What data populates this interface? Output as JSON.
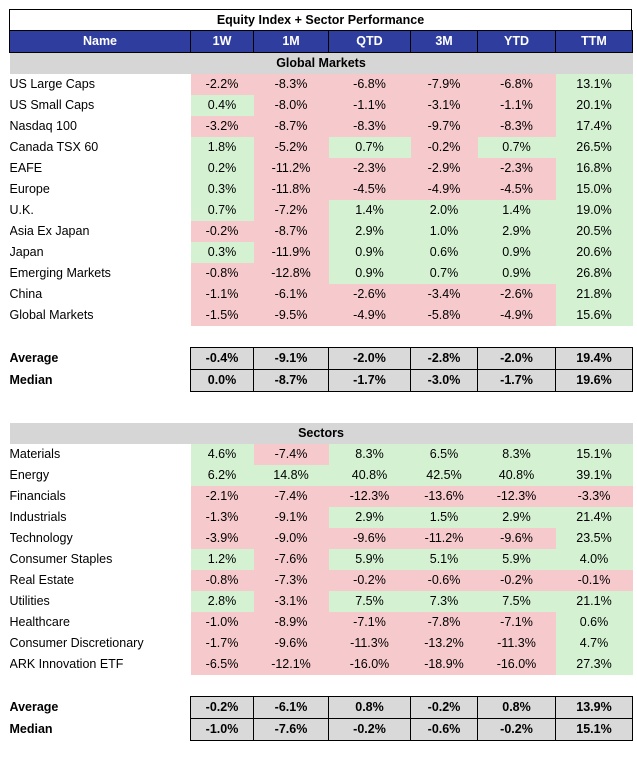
{
  "title": "Equity Index + Sector Performance",
  "columns": [
    "Name",
    "1W",
    "1M",
    "QTD",
    "3M",
    "YTD",
    "TTM"
  ],
  "global": {
    "header": "Global Markets",
    "rows": [
      {
        "name": "US Large Caps",
        "vals": [
          "-2.2%",
          "-8.3%",
          "-6.8%",
          "-7.9%",
          "-6.8%",
          "13.1%"
        ]
      },
      {
        "name": "US Small Caps",
        "vals": [
          "0.4%",
          "-8.0%",
          "-1.1%",
          "-3.1%",
          "-1.1%",
          "20.1%"
        ]
      },
      {
        "name": "Nasdaq 100",
        "vals": [
          "-3.2%",
          "-8.7%",
          "-8.3%",
          "-9.7%",
          "-8.3%",
          "17.4%"
        ]
      },
      {
        "name": "Canada TSX 60",
        "vals": [
          "1.8%",
          "-5.2%",
          "0.7%",
          "-0.2%",
          "0.7%",
          "26.5%"
        ]
      },
      {
        "name": "EAFE",
        "vals": [
          "0.2%",
          "-11.2%",
          "-2.3%",
          "-2.9%",
          "-2.3%",
          "16.8%"
        ]
      },
      {
        "name": "Europe",
        "vals": [
          "0.3%",
          "-11.8%",
          "-4.5%",
          "-4.9%",
          "-4.5%",
          "15.0%"
        ]
      },
      {
        "name": "U.K.",
        "vals": [
          "0.7%",
          "-7.2%",
          "1.4%",
          "2.0%",
          "1.4%",
          "19.0%"
        ]
      },
      {
        "name": "Asia Ex Japan",
        "vals": [
          "-0.2%",
          "-8.7%",
          "2.9%",
          "1.0%",
          "2.9%",
          "20.5%"
        ]
      },
      {
        "name": "Japan",
        "vals": [
          "0.3%",
          "-11.9%",
          "0.9%",
          "0.6%",
          "0.9%",
          "20.6%"
        ]
      },
      {
        "name": "Emerging Markets",
        "vals": [
          "-0.8%",
          "-12.8%",
          "0.9%",
          "0.7%",
          "0.9%",
          "26.8%"
        ]
      },
      {
        "name": "China",
        "vals": [
          "-1.1%",
          "-6.1%",
          "-2.6%",
          "-3.4%",
          "-2.6%",
          "21.8%"
        ]
      },
      {
        "name": "Global Markets",
        "vals": [
          "-1.5%",
          "-9.5%",
          "-4.9%",
          "-5.8%",
          "-4.9%",
          "15.6%"
        ]
      }
    ],
    "average": {
      "label": "Average",
      "vals": [
        "-0.4%",
        "-9.1%",
        "-2.0%",
        "-2.8%",
        "-2.0%",
        "19.4%"
      ]
    },
    "median": {
      "label": "Median",
      "vals": [
        "0.0%",
        "-8.7%",
        "-1.7%",
        "-3.0%",
        "-1.7%",
        "19.6%"
      ]
    }
  },
  "sectors": {
    "header": "Sectors",
    "rows": [
      {
        "name": "Materials",
        "vals": [
          "4.6%",
          "-7.4%",
          "8.3%",
          "6.5%",
          "8.3%",
          "15.1%"
        ]
      },
      {
        "name": "Energy",
        "vals": [
          "6.2%",
          "14.8%",
          "40.8%",
          "42.5%",
          "40.8%",
          "39.1%"
        ]
      },
      {
        "name": "Financials",
        "vals": [
          "-2.1%",
          "-7.4%",
          "-12.3%",
          "-13.6%",
          "-12.3%",
          "-3.3%"
        ]
      },
      {
        "name": "Industrials",
        "vals": [
          "-1.3%",
          "-9.1%",
          "2.9%",
          "1.5%",
          "2.9%",
          "21.4%"
        ]
      },
      {
        "name": "Technology",
        "vals": [
          "-3.9%",
          "-9.0%",
          "-9.6%",
          "-11.2%",
          "-9.6%",
          "23.5%"
        ]
      },
      {
        "name": "Consumer Staples",
        "vals": [
          "1.2%",
          "-7.6%",
          "5.9%",
          "5.1%",
          "5.9%",
          "4.0%"
        ]
      },
      {
        "name": "Real Estate",
        "vals": [
          "-0.8%",
          "-7.3%",
          "-0.2%",
          "-0.6%",
          "-0.2%",
          "-0.1%"
        ]
      },
      {
        "name": "Utilities",
        "vals": [
          "2.8%",
          "-3.1%",
          "7.5%",
          "7.3%",
          "7.5%",
          "21.1%"
        ]
      },
      {
        "name": "Healthcare",
        "vals": [
          "-1.0%",
          "-8.9%",
          "-7.1%",
          "-7.8%",
          "-7.1%",
          "0.6%"
        ]
      },
      {
        "name": "Consumer Discretionary",
        "vals": [
          "-1.7%",
          "-9.6%",
          "-11.3%",
          "-13.2%",
          "-11.3%",
          "4.7%"
        ]
      },
      {
        "name": "ARK Innovation ETF",
        "vals": [
          "-6.5%",
          "-12.1%",
          "-16.0%",
          "-18.9%",
          "-16.0%",
          "27.3%"
        ]
      }
    ],
    "average": {
      "label": "Average",
      "vals": [
        "-0.2%",
        "-6.1%",
        "0.8%",
        "-0.2%",
        "0.8%",
        "13.9%"
      ]
    },
    "median": {
      "label": "Median",
      "vals": [
        "-1.0%",
        "-7.6%",
        "-0.2%",
        "-0.6%",
        "-0.2%",
        "15.1%"
      ]
    }
  },
  "colors": {
    "header_bg": "#2f3e9e",
    "positive": "#d4f2d2",
    "negative": "#f6c9cc",
    "section_bg": "#d6d6d6"
  }
}
